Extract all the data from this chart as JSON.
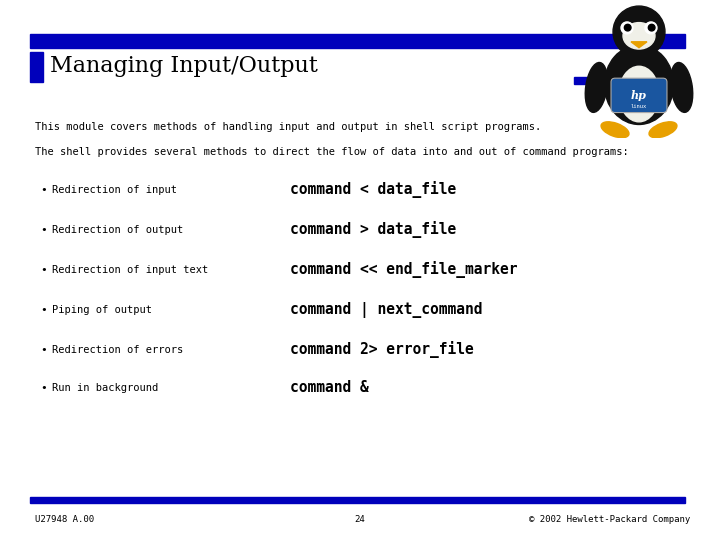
{
  "title": "Managing Input/Output",
  "bg_color": "#ffffff",
  "bar_color": "#0000bb",
  "title_color": "#000000",
  "title_fontsize": 16,
  "intro_text1": "This module covers methods of handling input and output in shell script programs.",
  "intro_text2": "The shell provides several methods to direct the flow of data into and out of command programs:",
  "bullet_labels": [
    "Redirection of input",
    "Redirection of output",
    "Redirection of input text",
    "Piping of output",
    "Redirection of errors",
    "Run in background"
  ],
  "bullet_commands": [
    "command < data_file",
    "command > data_file",
    "command << end_file_marker",
    "command | next_command",
    "command 2> error_file",
    "command &"
  ],
  "footer_left": "U27948 A.00",
  "footer_center": "24",
  "footer_right": "© 2002 Hewlett-Packard Company"
}
